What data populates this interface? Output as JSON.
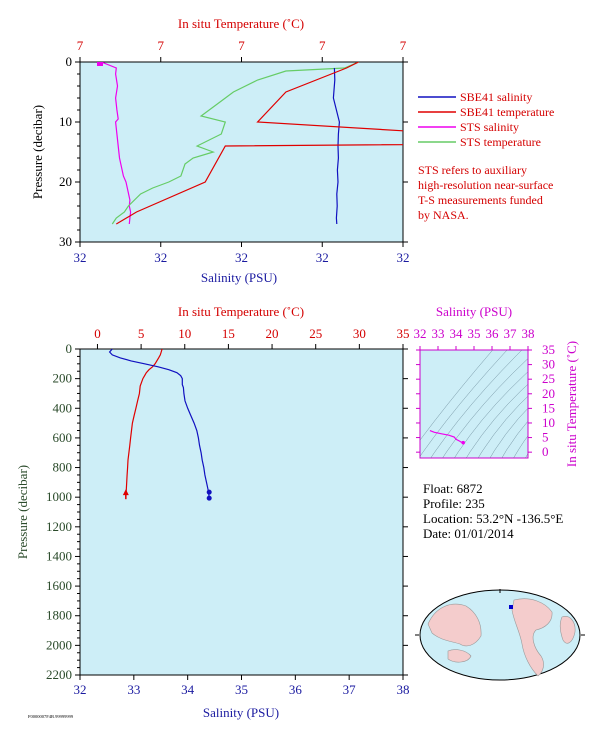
{
  "colors": {
    "panel_bg": "#cdeef7",
    "temperature": "#e00000",
    "salinity": "#1010c0",
    "sts_salinity": "#ee00ee",
    "sts_temperature": "#66cc66",
    "pressure_axis": "#2a4a2a",
    "ts_axis": "#cc00cc"
  },
  "chart_data": [
    {
      "type": "line",
      "panel": "near-surface",
      "top_axis_title": "In situ Temperature (˚C)",
      "top_ticks": [
        "7",
        "7",
        "7",
        "7",
        "7"
      ],
      "bottom_axis_title": "Salinity (PSU)",
      "bottom_ticks": [
        "32",
        "32",
        "32",
        "32",
        "32"
      ],
      "ylabel": "Pressure (decibar)",
      "yticks": [
        "0",
        "10",
        "20",
        "30"
      ],
      "ylim": [
        0,
        30
      ],
      "legend_placement": "right",
      "legend": [
        "SBE41 salinity",
        "SBE41 temperature",
        "STS salinity",
        "STS temperature"
      ],
      "note": [
        "STS refers to auxiliary",
        "high-resolution near-surface",
        "T-S measurements funded",
        "by NASA."
      ],
      "series": [
        {
          "name": "STS salinity",
          "p": [
            0,
            1,
            2,
            4,
            6,
            8,
            9.5,
            10,
            12,
            14,
            16,
            17,
            18,
            19,
            20,
            21,
            22,
            23,
            24,
            25,
            26,
            27
          ],
          "x": [
            0.02,
            0.25,
            0.24,
            0.27,
            0.24,
            0.26,
            0.28,
            0.24,
            0.26,
            0.28,
            0.3,
            0.32,
            0.34,
            0.36,
            0.4,
            0.42,
            0.44,
            0.46,
            0.45,
            0.47,
            0.46,
            0.45
          ]
        },
        {
          "name": "STS temperature",
          "p": [
            0,
            1,
            1.5,
            3,
            5,
            7,
            9,
            10,
            12,
            14,
            15,
            16,
            17,
            19,
            20,
            21,
            22,
            24,
            25,
            26,
            27
          ],
          "x": [
            6.9,
            6.55,
            5.1,
            4.4,
            3.8,
            3.4,
            3.0,
            3.6,
            3.5,
            2.9,
            3.3,
            2.8,
            2.6,
            2.5,
            2.2,
            1.8,
            1.5,
            1.2,
            1.1,
            0.9,
            0.8
          ]
        },
        {
          "name": "SBE41 salinity",
          "p": [
            1,
            3,
            6,
            8,
            10,
            12,
            14,
            16,
            18,
            20,
            22,
            24,
            26,
            27
          ],
          "x": [
            12.6,
            12.62,
            12.55,
            12.7,
            12.85,
            12.8,
            12.78,
            12.8,
            12.75,
            12.78,
            12.72,
            12.74,
            12.7,
            12.72
          ]
        },
        {
          "name": "SBE41 temperature",
          "p": [
            0,
            1,
            5,
            10,
            13.5,
            14,
            20,
            25,
            27
          ],
          "x": [
            6.9,
            6.6,
            5.1,
            4.4,
            13.0,
            3.6,
            3.1,
            1.4,
            0.9
          ]
        }
      ]
    },
    {
      "type": "line",
      "panel": "full-profile",
      "top_axis_title": "In situ Temperature (˚C)",
      "top_ticks": [
        "0",
        "5",
        "10",
        "15",
        "20",
        "25",
        "30",
        "35"
      ],
      "xlim_temperature": [
        -2,
        35
      ],
      "bottom_axis_title": "Salinity (PSU)",
      "bottom_ticks": [
        "32",
        "33",
        "34",
        "35",
        "36",
        "37",
        "38"
      ],
      "xlim_salinity": [
        32,
        38
      ],
      "ylabel": "Pressure (decibar)",
      "yticks": [
        "0",
        "200",
        "400",
        "600",
        "800",
        "1000",
        "1200",
        "1400",
        "1600",
        "1800",
        "2000",
        "2200"
      ],
      "ylim": [
        0,
        2200
      ],
      "series": [
        {
          "name": "temperature",
          "p": [
            0,
            20,
            40,
            60,
            80,
            100,
            120,
            140,
            160,
            180,
            200,
            250,
            300,
            350,
            400,
            450,
            500,
            550,
            600,
            650,
            700,
            750,
            800,
            850,
            900,
            950,
            1000
          ],
          "x": [
            7.4,
            7.3,
            7.2,
            7.0,
            6.8,
            6.6,
            6.3,
            5.9,
            5.6,
            5.4,
            5.2,
            4.9,
            4.8,
            4.6,
            4.4,
            4.2,
            4.0,
            3.9,
            3.8,
            3.7,
            3.6,
            3.5,
            3.45,
            3.4,
            3.35,
            3.3,
            3.25
          ]
        },
        {
          "name": "salinity",
          "p": [
            0,
            20,
            40,
            60,
            80,
            100,
            120,
            140,
            160,
            180,
            200,
            220,
            240,
            260,
            300,
            350,
            400,
            450,
            500,
            550,
            600,
            650,
            700,
            750,
            800,
            850,
            900,
            950,
            1000
          ],
          "x": [
            32.6,
            32.55,
            32.6,
            32.75,
            32.95,
            33.2,
            33.45,
            33.65,
            33.8,
            33.87,
            33.9,
            33.9,
            33.9,
            33.92,
            33.93,
            33.95,
            34.0,
            34.06,
            34.12,
            34.17,
            34.2,
            34.22,
            34.25,
            34.27,
            34.3,
            34.32,
            34.35,
            34.38,
            34.4
          ]
        }
      ]
    },
    {
      "type": "scatter",
      "panel": "T-S diagram",
      "top_axis_title": "Salinity (PSU)",
      "top_ticks": [
        "32",
        "33",
        "34",
        "35",
        "36",
        "37",
        "38"
      ],
      "right_axis_title": "In situ Temperature (˚C)",
      "right_ticks": [
        "0",
        "5",
        "10",
        "15",
        "20",
        "25",
        "30",
        "35"
      ],
      "xlim": [
        32,
        38
      ],
      "ylim": [
        -2,
        35
      ],
      "points": [
        {
          "s": 32.55,
          "t": 7.4
        },
        {
          "s": 32.8,
          "t": 6.8
        },
        {
          "s": 33.2,
          "t": 6.3
        },
        {
          "s": 33.6,
          "t": 5.8
        },
        {
          "s": 33.9,
          "t": 5.2
        },
        {
          "s": 34.0,
          "t": 4.4
        },
        {
          "s": 34.2,
          "t": 3.8
        },
        {
          "s": 34.3,
          "t": 3.4
        },
        {
          "s": 34.4,
          "t": 3.25
        }
      ]
    }
  ],
  "float_info": {
    "float": "Float:  6872",
    "profile": "Profile:  235",
    "location": "Location:  53.2°N  -136.5°E",
    "date": "Date:  01/01/2014"
  },
  "footer_code": "F0000007F4B.99999999"
}
